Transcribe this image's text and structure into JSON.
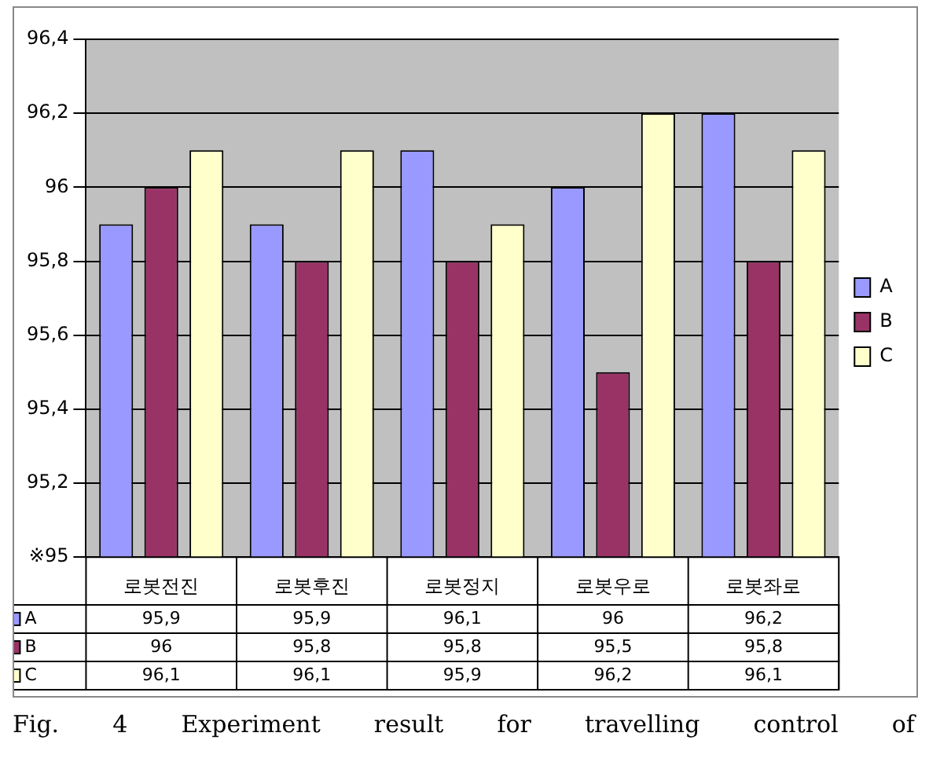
{
  "chart_data": {
    "type": "bar",
    "categories": [
      "로봇전진",
      "로봇후진",
      "로봇정지",
      "로봇우로",
      "로봇좌로"
    ],
    "series": [
      {
        "name": "A",
        "color": "#9999ff",
        "values": [
          95.9,
          95.9,
          96.1,
          96,
          96.2
        ],
        "value_labels": [
          "95,9",
          "95,9",
          "96,1",
          "96",
          "96,2"
        ]
      },
      {
        "name": "B",
        "color": "#993366",
        "values": [
          96,
          95.8,
          95.8,
          95.5,
          95.8
        ],
        "value_labels": [
          "96",
          "95,8",
          "95,8",
          "95,5",
          "95,8"
        ]
      },
      {
        "name": "C",
        "color": "#ffffcc",
        "values": [
          96.1,
          96.1,
          95.9,
          96.2,
          96.1
        ],
        "value_labels": [
          "96,1",
          "96,1",
          "95,9",
          "96,2",
          "96,1"
        ]
      }
    ],
    "ylim": [
      95,
      96.4
    ],
    "yticks": [
      {
        "value": 95,
        "label": "※95"
      },
      {
        "value": 95.2,
        "label": "95,2"
      },
      {
        "value": 95.4,
        "label": "95,4"
      },
      {
        "value": 95.6,
        "label": "95,6"
      },
      {
        "value": 95.8,
        "label": "95,8"
      },
      {
        "value": 96,
        "label": "96"
      },
      {
        "value": 96.2,
        "label": "96,2"
      },
      {
        "value": 96.4,
        "label": "96,4"
      }
    ],
    "grid": "y",
    "legend": "right",
    "annotations": [
      "Fig. 4    Experiment result for travelling control of"
    ]
  }
}
